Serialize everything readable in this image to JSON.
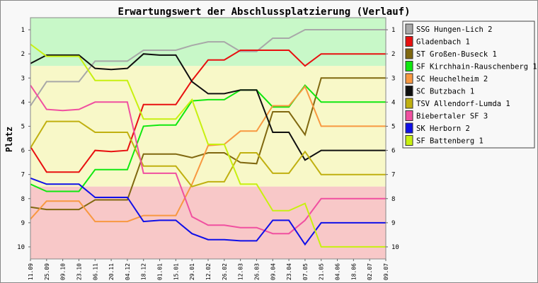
{
  "chart_data": {
    "type": "line",
    "title": "Erwartungswert der Abschlussplatzierung (Verlauf)",
    "ylabel": "Platz",
    "xlabel": "",
    "ylim": [
      10.5,
      0.5
    ],
    "yticks": [
      "1",
      "2",
      "3",
      "4",
      "5",
      "6",
      "7",
      "8",
      "9",
      "10"
    ],
    "x": [
      "11.09",
      "25.09",
      "09.10",
      "23.10",
      "06.11",
      "20.11",
      "04.12",
      "18.12",
      "01.01",
      "15.01",
      "29.01",
      "12.02",
      "26.02",
      "12.03",
      "26.03",
      "09.04",
      "23.04",
      "07.05",
      "21.05",
      "04.06",
      "18.06",
      "02.07",
      "09.07"
    ],
    "bands": [
      {
        "from": 0.5,
        "to": 2.5,
        "color": "#c8f8c8"
      },
      {
        "from": 2.5,
        "to": 7.5,
        "color": "#f8f8c8"
      },
      {
        "from": 7.5,
        "to": 10.5,
        "color": "#f8c8c8"
      }
    ],
    "legend_position": "right",
    "series": [
      {
        "name": "SSG Hungen-Lich 2",
        "color": "#a8a8a8",
        "values": [
          4.15,
          3.15,
          3.15,
          3.15,
          2.3,
          2.3,
          2.3,
          1.85,
          1.85,
          1.85,
          1.65,
          1.5,
          1.5,
          1.9,
          1.9,
          1.35,
          1.35,
          1.0,
          1.0,
          1.0,
          1.0,
          1.0,
          1.0
        ]
      },
      {
        "name": "Gladenbach 1",
        "color": "#e81010",
        "values": [
          5.85,
          6.9,
          6.9,
          6.9,
          6.0,
          6.05,
          6.0,
          4.1,
          4.1,
          4.1,
          3.1,
          2.25,
          2.25,
          1.85,
          1.85,
          1.85,
          1.85,
          2.5,
          2.0,
          2.0,
          2.0,
          2.0,
          2.0
        ]
      },
      {
        "name": "ST Großen-Buseck 1",
        "color": "#806810",
        "values": [
          8.35,
          8.45,
          8.45,
          8.45,
          8.05,
          8.05,
          8.05,
          6.15,
          6.15,
          6.15,
          6.3,
          6.1,
          6.1,
          6.5,
          6.55,
          4.4,
          4.4,
          5.35,
          3.0,
          3.0,
          3.0,
          3.0,
          3.0
        ]
      },
      {
        "name": "SF Kirchhain-Rauschenberg 1",
        "color": "#10e810",
        "values": [
          7.4,
          7.7,
          7.7,
          7.7,
          6.8,
          6.8,
          6.8,
          5.0,
          4.95,
          4.95,
          3.95,
          3.9,
          3.9,
          3.5,
          3.5,
          4.2,
          4.2,
          3.3,
          4.0,
          4.0,
          4.0,
          4.0,
          4.0
        ]
      },
      {
        "name": "SC Heuchelheim 2",
        "color": "#f89840",
        "values": [
          8.85,
          8.1,
          8.1,
          8.1,
          8.95,
          8.95,
          8.95,
          8.7,
          8.7,
          8.7,
          7.4,
          5.8,
          5.75,
          5.2,
          5.2,
          4.15,
          4.15,
          3.35,
          5.0,
          5.0,
          5.0,
          5.0,
          5.0
        ]
      },
      {
        "name": "SC Butzbach 1",
        "color": "#101010",
        "values": [
          2.4,
          2.05,
          2.05,
          2.05,
          2.6,
          2.65,
          2.6,
          2.0,
          2.05,
          2.05,
          3.15,
          3.65,
          3.65,
          3.5,
          3.5,
          5.25,
          5.25,
          6.4,
          6.0,
          6.0,
          6.0,
          6.0,
          6.0
        ]
      },
      {
        "name": "TSV Allendorf-Lumda 1",
        "color": "#c0b010",
        "values": [
          5.9,
          4.8,
          4.8,
          4.8,
          5.25,
          5.25,
          5.25,
          6.65,
          6.65,
          6.65,
          7.5,
          7.3,
          7.3,
          6.1,
          6.1,
          6.95,
          6.95,
          6.05,
          7.0,
          7.0,
          7.0,
          7.0,
          7.0
        ]
      },
      {
        "name": "Biebertaler SF 3",
        "color": "#f050a0",
        "values": [
          3.3,
          4.3,
          4.35,
          4.3,
          4.0,
          4.0,
          4.0,
          6.95,
          6.95,
          6.95,
          8.75,
          9.1,
          9.1,
          9.2,
          9.2,
          9.45,
          9.45,
          8.9,
          8.0,
          8.0,
          8.0,
          8.0,
          8.0
        ]
      },
      {
        "name": "SK Herborn 2",
        "color": "#1010e8",
        "values": [
          7.15,
          7.4,
          7.4,
          7.4,
          7.95,
          7.95,
          7.95,
          8.95,
          8.9,
          8.9,
          9.45,
          9.7,
          9.7,
          9.75,
          9.75,
          8.9,
          8.9,
          9.9,
          9.0,
          9.0,
          9.0,
          9.0,
          9.0
        ]
      },
      {
        "name": "SF Battenberg 1",
        "color": "#c8f010",
        "values": [
          1.6,
          2.1,
          2.1,
          2.1,
          3.1,
          3.1,
          3.1,
          4.7,
          4.7,
          4.7,
          3.9,
          5.75,
          5.75,
          7.4,
          7.4,
          8.5,
          8.5,
          8.2,
          10.0,
          10.0,
          10.0,
          10.0,
          10.0
        ]
      }
    ]
  }
}
